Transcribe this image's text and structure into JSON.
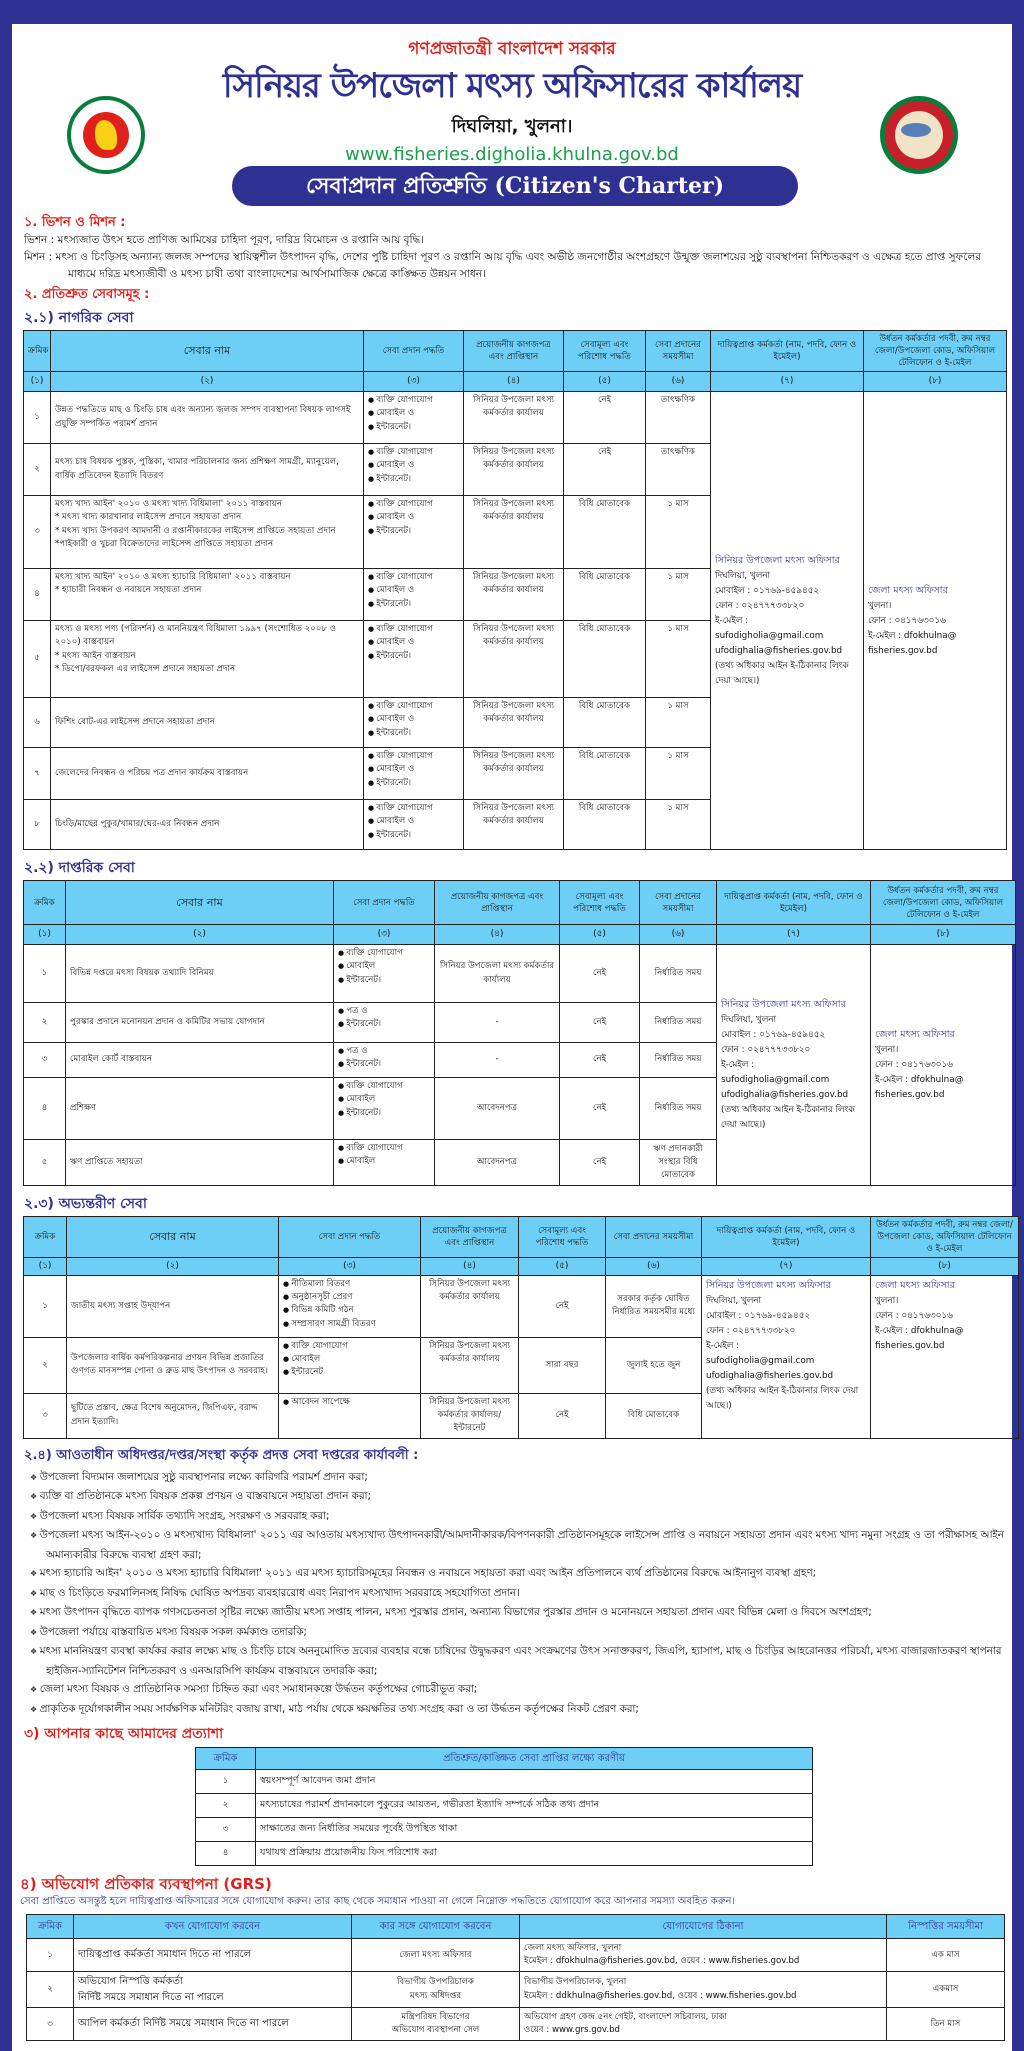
{
  "header": {
    "gov": "গণপ্রজাতন্ত্রী বাংলাদেশ সরকার",
    "office": "সিনিয়র উপজেলা মৎস্য অফিসারের কার্যালয়",
    "location": "দিঘলিয়া, খুলনা।",
    "website": "www.fisheries.digholia.khulna.gov.bd",
    "banner": "সেবাপ্রদান প্রতিশ্রুতি (Citizen's Charter)"
  },
  "colors": {
    "border": "#2e3192",
    "header_bg": "#6dcff6",
    "red": "#e0201b",
    "green": "#1aa04a"
  },
  "section1": {
    "heading": "১. ভিশন ও মিশন :",
    "vision": "ভিশন : মৎস্যজাত উৎস হতে প্রাণিজ আমিষের চাহিদা পূরণ, দারিদ্র বিমোচন ও রপ্তানি আয় বৃদ্ধি।",
    "mission": "মিশন : মৎস্য ও চিংড়িসহ অন্যান্য জলজ সম্পদের স্থায়িত্বশীল উৎপাদন বৃদ্ধি, দেশের পুষ্টি চাহিদা পূরণ ও রপ্তানি আয় বৃদ্ধি এবং অভীষ্ঠ জনগোষ্ঠীর অংশগ্রহণে উন্মুক্ত জলাশয়ের সুষ্ঠু ব্যবস্থাপনা নিশ্চিতকরণ ও এক্ষেত্র হতে প্রাপ্ত সুফলের মাধ্যমে দরিদ্র মৎস্যজীবী ও মৎস্য চাষী তথা বাংলাদেশের আর্থসামাজিক ক্ষেত্রে কাঙ্ক্ষিত উন্নয়ন সাধন।"
  },
  "section2": {
    "heading": "২. প্রতিশ্রুত সেবাসমূহ :"
  },
  "table_headers": [
    "ক্রমিক",
    "সেবার নাম",
    "সেবা প্রদান পদ্ধতি",
    "প্রয়োজনীয় কাগজপত্র এবং প্রাপ্তিস্থান",
    "সেবামূল্য এবং পরিশোধ পদ্ধতি",
    "সেবা প্রদানের সময়সীমা",
    "দায়িত্বপ্রাপ্ত কর্মকর্তা (নাম, পদবি, ফোন ও ইমেইল)",
    "উর্ধতন কর্মকর্তার পদবী, রুম নম্বর জেলা/উপজেলা কোড, অফিসিয়াল টেলিফোন ও ই-মেইল"
  ],
  "column_numbers": [
    "(১)",
    "(২)",
    "(৩)",
    "(৪)",
    "(৫)",
    "(৬)",
    "(৭)",
    "(৮)"
  ],
  "officer": {
    "title": "সিনিয়র উপজেলা মৎস্য অফিসার",
    "lines": [
      "দিঘলিয়া, খুলনা",
      "মোবাইল : ০১৭৬৯-৪৫৯৪৫২",
      "ফোন : ০২৪৭৭৭৩৩৮২০",
      "ই-মেইল :",
      "sufodigholia@gmail.com",
      "ufodighalia@fisheries.gov.bd",
      "(তথ্য অধিকার আইন ই-ঠিকানার লিংক দেয়া আছে।)"
    ]
  },
  "superior": {
    "title": "জেলা মৎস্য অফিসার",
    "lines": [
      "খুলনা।",
      "ফোন : ০৪১৭৬৩০১৬",
      "ই-মেইল : dfokhulna@",
      "fisheries.gov.bd"
    ]
  },
  "tables": [
    {
      "heading": "২.১) নাগরিক সেবা",
      "rows": [
        {
          "no": "১",
          "name": [
            "উন্নত পদ্ধতিতে মাছ ও চিংড়ি চাষ এবং অন্যান্য জলজ সম্পদ ব্যবস্থাপনা বিষয়ক লাগসই প্রযুক্তি সম্পর্কিত পরামর্শ প্রদান"
          ],
          "method": [
            "ব্যক্তি যোগাযোগ",
            "মোবাইল ও",
            "ইন্টারনেট।"
          ],
          "docs": "সিনিয়র উপজেলা মৎস্য কর্মকর্তার কার্যালয়",
          "fee": "নেই",
          "time": "তাৎক্ষণিক"
        },
        {
          "no": "২",
          "name": [
            "মৎস্য চাষ বিষয়ক পুস্তক, পুস্তিকা, খামার পরিচালনার জন্য প্রশিক্ষণ সামগ্রী, ম্যানুয়েল, বার্ষিক প্রতিবেদন ইত্যাদি বিতরণ"
          ],
          "method": [
            "ব্যক্তি যোগাযোগ",
            "মোবাইল ও",
            "ইন্টারনেট।"
          ],
          "docs": "সিনিয়র উপজেলা মৎস্য কর্মকর্তার কার্যালয়",
          "fee": "নেই",
          "time": "তাৎক্ষণিক"
        },
        {
          "no": "৩",
          "name": [
            "মৎস্য খাদ্য আইন' ২০১০ ও মৎস্য খাদ্য বিধিমালা' ২০১১ বাস্তবায়ন",
            "* মৎস্য খাদ্য কারখানার লাইসেন্স প্রদানে সহায়তা প্রদান",
            "* মৎস্য খাদ্য উপকরণ আমদানী ও রপ্তানীকারকের লাইসেন্স প্রাপ্তিতে সহায়তা প্রদান",
            "*পাইকারী ও খুচরা বিক্রেতাদের লাইসেন্স প্রাপ্তিতে সহায়তা প্রদান"
          ],
          "method": [
            "ব্যক্তি যোগাযোগ",
            "মোবাইল ও",
            "ইন্টারনেট।"
          ],
          "docs": "সিনিয়র উপজেলা মৎস্য কর্মকর্তার কার্যালয়",
          "fee": "বিধি মোতাবেক",
          "time": "১ মাস"
        },
        {
          "no": "৪",
          "name": [
            "মৎস্য খাদ্য আইন' ২০১০ ও মৎস্য হ্যাচারি বিধিমালা' ২০১১ বাস্তবায়ন",
            "* হ্যাচারী নিবন্ধন ও নবায়নে সহায়তা প্রদান"
          ],
          "method": [
            "ব্যক্তি যোগাযোগ",
            "মোবাইল ও",
            "ইন্টারনেট।"
          ],
          "docs": "সিনিয়র উপজেলা মৎস্য কর্মকর্তার কার্যালয়",
          "fee": "বিধি মোতাবেক",
          "time": "১ মাস"
        },
        {
          "no": "৫",
          "name": [
            "মৎস্য ও মৎস্য পণ্য (পরিদর্শন) ও মাননিয়ন্ত্রণ বিধিমালা ১৯৯৭ (সংশোধিত ২০০৮ ও ২০১০) বাস্তবায়ন",
            "* মৎস্য আইন বাস্তবায়ন",
            "* ডিপো/বরফকল এর লাইসেন্স প্রদানে সহায়তা প্রদান"
          ],
          "method": [
            "ব্যক্তি যোগাযোগ",
            "মোবাইল ও",
            "ইন্টারনেট।"
          ],
          "docs": "সিনিয়র উপজেলা মৎস্য কর্মকর্তার কার্যালয়",
          "fee": "বিধি মোতাবেক",
          "time": "১ মাস"
        },
        {
          "no": "৬",
          "name": [
            "ফিশিং বোট-এর লাইসেন্স প্রদানে সহায়তা প্রদান"
          ],
          "method": [
            "ব্যক্তি যোগাযোগ",
            "মোবাইল ও",
            "ইন্টারনেট।"
          ],
          "docs": "সিনিয়র উপজেলা মৎস্য কর্মকর্তার কার্যালয়",
          "fee": "বিধি মোতাবেক",
          "time": "১ মাস"
        },
        {
          "no": "৭",
          "name": [
            "জেলেদের নিবন্ধন ও পরিচয় পত্র প্রদান কার্যক্রম বাস্তবায়ন"
          ],
          "method": [
            "ব্যক্তি যোগাযোগ",
            "মোবাইল ও",
            "ইন্টারনেট।"
          ],
          "docs": "সিনিয়র উপজেলা মৎস্য কর্মকর্তার কার্যালয়",
          "fee": "বিধি মোতাবেক",
          "time": "১ মাস"
        },
        {
          "no": "৮",
          "name": [
            "চিংড়ি/মাছের পুকুর/খামার/ঘের-এর নিবন্ধন প্রদান"
          ],
          "method": [
            "ব্যক্তি যোগাযোগ",
            "মোবাইল ও",
            "ইন্টারনেট।"
          ],
          "docs": "সিনিয়র উপজেলা মৎস্য কর্মকর্তার কার্যালয়",
          "fee": "বিধি মোতাবেক",
          "time": "১ মাস"
        }
      ]
    },
    {
      "heading": "২.২) দাপ্তরিক সেবা",
      "rows": [
        {
          "no": "১",
          "name": [
            "বিভিন্ন দপ্তরে মৎস্য বিষয়ক তথ্যাদি বিনিময়"
          ],
          "method": [
            "ব্যক্তি যোগাযোগ",
            "মোবাইল",
            "ইন্টারনেট।"
          ],
          "docs": "সিনিয়র উপজেলা মৎস্য কর্মকর্তার কার্যালয়",
          "fee": "নেই",
          "time": "নির্ধারিত সময়"
        },
        {
          "no": "২",
          "name": [
            "পুরস্কার প্রদানে মনোনয়ন প্রদান ও কমিটির সভায় যোগদান"
          ],
          "method": [
            "পত্র ও",
            "ইন্টারনেট।"
          ],
          "docs": "-",
          "fee": "নেই",
          "time": "নির্ধারিত সময়"
        },
        {
          "no": "৩",
          "name": [
            "মোবাইল কোর্ট বাস্তবায়ন"
          ],
          "method": [
            "পত্র ও",
            "ইন্টারনেট।"
          ],
          "docs": "-",
          "fee": "নেই",
          "time": "নির্ধারিত সময়"
        },
        {
          "no": "৪",
          "name": [
            "প্রশিক্ষণ"
          ],
          "method": [
            "ব্যক্তি যোগাযোগ",
            "মোবাইল",
            "ইন্টারনেট।"
          ],
          "docs": "আবেদনপত্র",
          "fee": "নেই",
          "time": "নির্ধারিত সময়"
        },
        {
          "no": "৫",
          "name": [
            "ঋণ প্রাপ্তিতে সহায়তা"
          ],
          "method": [
            "ব্যক্তি যোগাযোগ",
            "মোবাইল"
          ],
          "docs": "আবেদনপত্র",
          "fee": "নেই",
          "time": "ঋণ প্রদানকারী সংস্থার বিধি মোতাবেক"
        }
      ]
    },
    {
      "heading": "২.৩) অভ্যন্তরীণ সেবা",
      "rows": [
        {
          "no": "১",
          "name": [
            "জাতীয় মৎস্য সপ্তাহ উদ্‌যাপন"
          ],
          "method": [
            "নীতিমালা বিতরণ",
            "অনুষ্ঠানসূচী প্রেরণ",
            "বিভিন্ন কমিটি গঠন",
            "সম্প্রসারণ সামগ্রী বিতরণ"
          ],
          "docs": "সিনিয়র উপজেলা মৎস্য কর্মকর্তার কার্যালয়",
          "fee": "নেই",
          "time": "সরকার কর্তৃক ঘোষিত নির্ধারিত সময়সমীর মধ্যে"
        },
        {
          "no": "২",
          "name": [
            "উপজেলার বার্ষিক কর্মপরিকল্পনার প্রণয়ন বিভিন্ন প্রজাতির গুণগত মানসম্পন্ন পোনা ও ব্রুড মাছ উৎপাদন ও সরবরাহ।"
          ],
          "method": [
            "ব্যক্তি যোগাযোগ",
            "মোবাইল",
            "ইন্টারনেট"
          ],
          "docs": "সিনিয়র উপজেলা মৎস্য কর্মকর্তার কার্যালয়",
          "fee": "সারা বছর",
          "time": "জুলাই হতে জুন"
        },
        {
          "no": "৩",
          "name": [
            "ছুটিতে প্রস্তাব, ক্ষেত্র বিশেষ অনুমোদন, জিপিএফ, বরাদ্দ প্রদান ইত্যাদি।"
          ],
          "method": [
            "আবেদন সাপেক্ষে"
          ],
          "docs": "সিনিয়র উপজেলা মৎস্য কর্মকর্তার কার্যালয়/ইন্টারনেট",
          "fee": "নেই",
          "time": "বিধি মোতাবেক"
        }
      ]
    }
  ],
  "section24": {
    "heading": "২.৪) আওতাধীন অধিদপ্তর/দপ্তর/সংস্থা কর্তৃক প্রদত্ত সেবা দপ্তরের কার্যাবলী :",
    "items": [
      "উপজেলা বিদ্যমান জলাশয়ের সুষ্ঠু ব্যবস্থাপনার লক্ষ্যে কারিগরি পরামর্শ প্রদান করা;",
      "ব্যক্তি বা প্রতিষ্ঠানকে মৎস্য বিষয়ক প্রকল্প প্রণয়ন ও বাস্তবায়নে সহায়তা প্রদান করা;",
      "উপজেলা মৎস্য বিষয়ক সার্বিক তথ্যাদি সংগ্রহ, সংরক্ষণ ও সরবরাহ করা;",
      "উপজেলা মৎস্য আইন-২০১০ ও মৎস্যখাদ্য বিধিমালা' ২০১১ এর আওতায় মৎস্যখাদ্য উৎপাদনকারী/আমদানীকারক/বিপণনকারী প্রতিষ্ঠানসমূহকে লাইসেন্স প্রাপ্তি ও নবায়নে সহায়তা প্রদান এবং মৎস্য খাদ্য নমুনা সংগ্রহ ও তা পরীক্ষাসহ আইন অমান্যকারীর বিরুদ্ধে ব্যবস্থা গ্রহণ করা;",
      "মৎস্য হ্যাচারি আইন' ২০১০ ও মৎস্য হ্যাচারি বিধিমালা' ২০১১ এর মৎস্য হ্যাচারিসমূহের নিবন্ধন ও নবায়নে সহায়তা করা এবং আইন প্রতিপালনে ব্যর্থ প্রতিষ্ঠানের বিরুদ্ধে আইনানুগ ব্যবস্থা গ্রহণ;",
      "মাছ ও চিংড়িতে ফরমালিনসহ নিষিদ্ধ ঘোষিত অপদ্রব্য ব্যবহাররোধ এবং নিরাপদ মৎস্যখাদ্য সরবরাহে সহযোগিতা প্রদান।",
      "মৎস্য উৎপাদন বৃদ্ধিতে ব্যাপক গণসচেতনতা সৃষ্টির লক্ষ্যে জাতীয় মৎস্য সপ্তাহ পালন, মৎস্য পুরস্কার প্রদান, অন্যান্য বিভাগের পুরস্কার প্রদান ও মনোনয়নে সহায়তা প্রদান এবং বিভিন্ন মেলা ও দিবসে অংশগ্রহণ;",
      "উপজেলা পর্যায়ে বাস্তবায়িত মৎস্য বিষয়ক সকল কর্মকাণ্ড তদারকি;",
      "মৎস্য মাননিয়ন্ত্রণ ব্যবস্থা কার্যকর করার লক্ষ্যে মাছ ও চিংড়ি চাষে অননুমোদিত দ্রব্যের ব্যবহার বন্ধে চাষিদের উদ্বুদ্ধকরণ এবং সংক্রমণের উৎস সনাক্তকরণ, জিএপি, হ্যাসাপ, মাছ ও চিংড়ির আহরোনত্তর পরিচর্যা, মৎস্য বাজারজাতকরণ স্থাপনার হাইজিন-স্যানিটেশন নিশ্চিতকরণ ও এনআরসিপি কার্যক্রম বাস্তবায়নে তদারকি করা;",
      "জেলা মৎস্য বিষয়ক ও প্রাতিষ্ঠানিক সমস্যা চিহ্নিত করা এবং সমাধানকল্পে উর্দ্ধতন কর্তৃপক্ষের গোচরীভূত করা;",
      "প্রাকৃতিক দূর্যোগকালীন সময় সার্বক্ষণিক মনিটরিং বজায় রাখা, মাঠ পর্যায় থেকে ক্ষয়ক্ষতির তথ্য সংগ্রহ করা ও তা উর্দ্ধতন কর্তৃপক্ষের নিকট প্রেরণ করা;"
    ]
  },
  "section3": {
    "heading": "৩) আপনার কাছে আমাদের প্রত্যাশা",
    "headers": [
      "ক্রমিক",
      "প্রতিশ্রুত/কাঙ্ক্ষিত সেবা প্রাপ্তির লক্ষ্যে করণীয়"
    ],
    "rows": [
      {
        "no": "১",
        "text": "স্বয়ংসম্পূর্ণ আবেদন জমা প্রদান"
      },
      {
        "no": "২",
        "text": "মৎস্যচাষের পরামর্শ প্রদানকালে পুকুরের আয়তন, গভীরতা ইত্যাদি সম্পর্কে সঠিক তথ্য প্রদান"
      },
      {
        "no": "৩",
        "text": "সাক্ষাতের জন্য নির্ধাতির সময়ের পূর্বেই উপস্থিত থাকা"
      },
      {
        "no": "৪",
        "text": "যথাযথ প্রক্রিয়ায় প্রয়োজনীয় ফিস পরিশোধ করা"
      }
    ]
  },
  "section4": {
    "heading": "৪) অভিযোগ প্রতিকার ব্যবস্থাপনা (GRS)",
    "note": "সেবা প্রাপ্তিতে অসন্তুষ্ট হলে দায়িত্বপ্রাপ্ত অফিসারের সঙ্গে যোগাযোগ করুন। তার কাছ থেকে সমাধান পাওয়া না গেলে নিম্নোক্ত পদ্ধতিতে যোগাযোগ করে আপনার সমস্যা অবহিত করুন।",
    "headers": [
      "ক্রমিক",
      "কখন যোগাযোগ করবেন",
      "কার সঙ্গে যোগাযোগ করবেন",
      "যোগাযোগের ঠিকানা",
      "নিস্পত্তির সময়সীমা"
    ],
    "rows": [
      {
        "no": "১",
        "when": [
          "দায়িত্বপ্রাপ্ত কর্মকর্তা সমাধান দিতে না পারলে"
        ],
        "whom": [
          "জেলা মৎস্য অফিসার"
        ],
        "address": [
          "জেলা মৎস্য অফিসার, খুলনা",
          "ইমেইল : dfokhulna@fisheries.gov.bd, ওয়েব : www.fisheries.gov.bd"
        ],
        "time": "এক মাস"
      },
      {
        "no": "২",
        "when": [
          "অভিযোগ নিস্পত্তি কর্মকর্তা",
          "নির্দিষ্ট সময়ে সমাধান দিতে না পারলে"
        ],
        "whom": [
          "বিভাগীয় উপপরিচালক",
          "মৎস্য অধিদপ্তর"
        ],
        "address": [
          "বিভাগীয় উপপরিচালক, খুলনা",
          "ইমেইল : ddkhulna@fisheries.gov.bd, ওয়েব : www.fisheries.gov.bd"
        ],
        "time": "একমাস"
      },
      {
        "no": "৩",
        "when": [
          "আপিল কর্মকর্তা নির্দিষ্ট সময়ে সমাধান দিতে না পারলে"
        ],
        "whom": [
          "মন্ত্রিপরিষদ বিভাগের",
          "অভিযোগ ব্যবস্থাপনা সেল"
        ],
        "address": [
          "অভিযোগ গ্রহণ কেন্দ্র ৫নং গেইট, বাংলাদেশ সচিবালয়, ঢাকা",
          "ওয়েব : www.grs.gov.bd"
        ],
        "time": "তিন মাস"
      }
    ]
  }
}
